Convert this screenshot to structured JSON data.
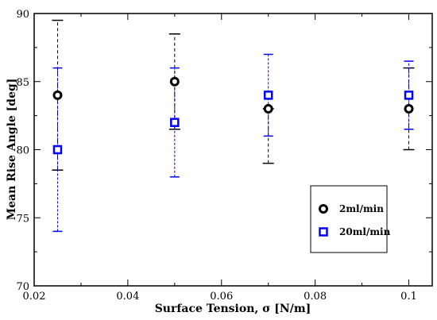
{
  "chart_data": {
    "type": "scatter",
    "xlabel": "Surface Tension, σ [N/m]",
    "ylabel": "Mean Rise Angle [deg]",
    "xlim": [
      0.02,
      0.105
    ],
    "ylim": [
      70,
      90
    ],
    "xticks": [
      0.02,
      0.04,
      0.06,
      0.08,
      0.1
    ],
    "xtick_labels": [
      "0.02",
      "0.04",
      "0.06",
      "0.08",
      "0.1"
    ],
    "yticks": [
      70,
      75,
      80,
      85,
      90
    ],
    "ytick_labels": [
      "70",
      "75",
      "80",
      "85",
      "90"
    ],
    "grid": false,
    "legend_position": "lower-right",
    "series": [
      {
        "name": "2ml/min",
        "color": "#000000",
        "marker": "circle",
        "x": [
          0.025,
          0.05,
          0.07,
          0.1
        ],
        "y": [
          84,
          85,
          83,
          83
        ],
        "err_low": [
          78.5,
          81.5,
          79,
          80
        ],
        "err_high": [
          89.5,
          88.5,
          83,
          86
        ]
      },
      {
        "name": "20ml/min",
        "color": "#0000ff",
        "marker": "square",
        "x": [
          0.025,
          0.05,
          0.07,
          0.1
        ],
        "y": [
          80,
          82,
          84,
          84
        ],
        "err_low": [
          74,
          78,
          81,
          81.5
        ],
        "err_high": [
          86,
          86,
          87,
          86.5
        ]
      }
    ]
  }
}
